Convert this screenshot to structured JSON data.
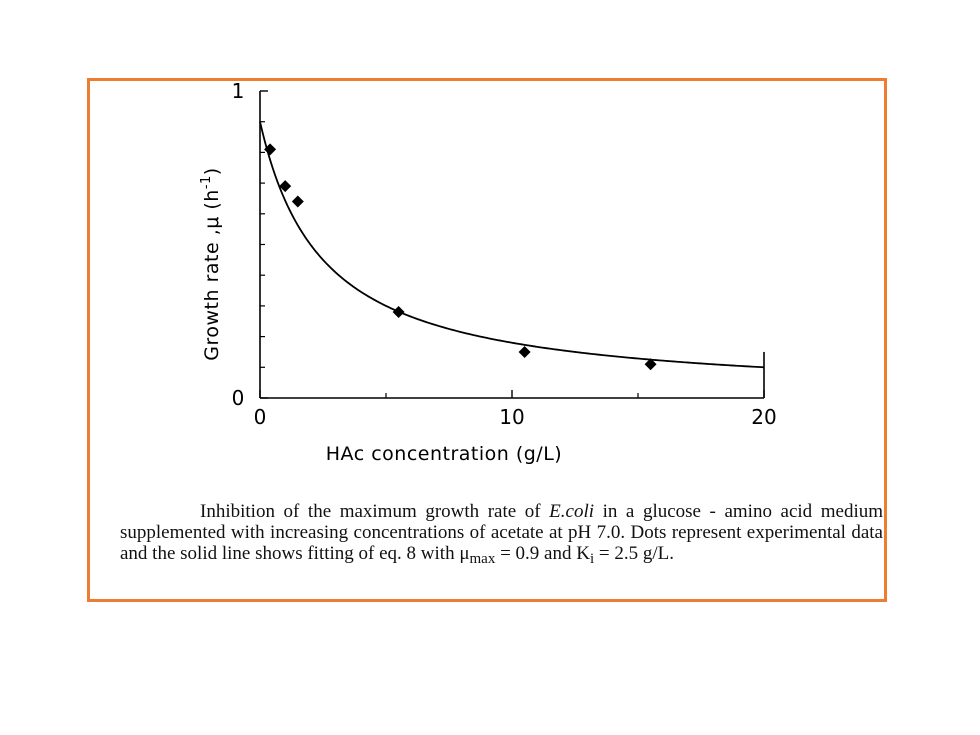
{
  "chart_data": {
    "type": "scatter",
    "xlabel": "HAc concentration (g/L)",
    "ylabel": "Growth rate ,μ (h",
    "ylabel_superscript": "-1",
    "ylabel_close": ")",
    "xlim": [
      0,
      20
    ],
    "ylim": [
      0,
      1
    ],
    "x_tick_labels": [
      "0",
      "10",
      "20"
    ],
    "x_ticks": [
      0,
      10,
      20
    ],
    "y_tick_labels": [
      "0",
      "1"
    ],
    "y_ticks": [
      0,
      1
    ],
    "y_minor_ticks": [
      0.1,
      0.2,
      0.3,
      0.4,
      0.5,
      0.6,
      0.7,
      0.8,
      0.9
    ],
    "x_minor_ticks": [
      5,
      15
    ],
    "grid": false,
    "series": [
      {
        "marker": "diamond",
        "points": [
          {
            "x": 0.4,
            "y": 0.81
          },
          {
            "x": 1.0,
            "y": 0.69
          },
          {
            "x": 1.5,
            "y": 0.64
          },
          {
            "x": 5.5,
            "y": 0.28
          },
          {
            "x": 10.5,
            "y": 0.15
          },
          {
            "x": 15.5,
            "y": 0.11
          }
        ]
      },
      {
        "line": "solid",
        "model": "mu = mu_max / (1 + S / Ki)",
        "mu_max": 0.9,
        "Ki": 2.5
      }
    ]
  },
  "caption": {
    "part1": "Inhibition of the maximum growth rate of ",
    "organism": "E.coli",
    "part2": " in a glucose - amino acid medium supplemented with increasing concentrations of acetate at pH 7.0. Dots represent experimental data and the solid line shows fitting of eq. 8 with ",
    "mu_symbol": "μ",
    "mu_sub": "max",
    "part3": " = 0.9 and K",
    "k_sub": "i",
    "part4": " = 2.5 g/L."
  },
  "colors": {
    "frame_border": "#ed7d31",
    "ink": "#000000"
  }
}
